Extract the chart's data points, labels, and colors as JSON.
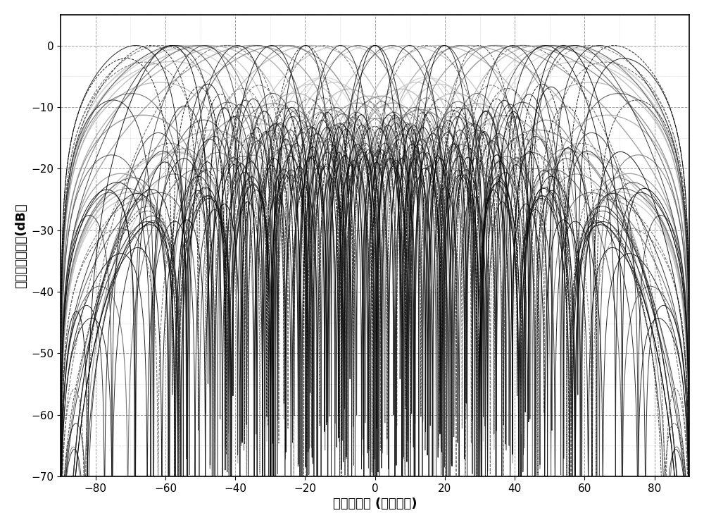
{
  "xlabel": "垂直面角度 (单位：度)",
  "ylabel": "归一化辐射功率(dB）",
  "xlim": [
    -90,
    90
  ],
  "ylim": [
    -70,
    5
  ],
  "yticks": [
    0,
    -10,
    -20,
    -30,
    -40,
    -50,
    -60,
    -70
  ],
  "xticks": [
    -80,
    -60,
    -40,
    -20,
    0,
    20,
    40,
    60,
    80
  ],
  "background_color": "#ffffff",
  "major_grid_color": "#888888",
  "minor_grid_color": "#aaaaaa",
  "font_size_label": 13,
  "font_size_tick": 11,
  "steering_angles_wide": [
    -80,
    -70,
    -60,
    -50,
    -40,
    -30,
    -20,
    -10,
    0,
    10,
    20,
    30,
    40,
    50,
    60,
    70,
    80
  ],
  "steering_angles_medium": [
    -75,
    -65,
    -55,
    -45,
    -35,
    -25,
    -15,
    -5,
    5,
    15,
    25,
    35,
    45,
    55,
    65,
    75
  ],
  "steering_angles_narrow": [
    -80,
    -70,
    -60,
    -50,
    -40,
    -30,
    -20,
    -10,
    0,
    10,
    20,
    30,
    40,
    50,
    60,
    70,
    80
  ],
  "colors_wide": [
    "#cccccc",
    "#bbbbbb",
    "#aaaaaa",
    "#999999",
    "#888888",
    "#777777",
    "#aaaaaa",
    "#bbbbbb",
    "#cccccc",
    "#bbbbbb",
    "#aaaaaa",
    "#999999",
    "#888888",
    "#777777",
    "#aaaaaa",
    "#bbbbbb",
    "#cccccc"
  ],
  "colors_medium": [
    "#555555",
    "#444444",
    "#666666",
    "#555555",
    "#444444",
    "#777777",
    "#666666",
    "#555555",
    "#444444",
    "#555555",
    "#666666",
    "#777777",
    "#555555",
    "#444444",
    "#555555",
    "#666666"
  ],
  "colors_narrow": [
    "#000000",
    "#111111",
    "#222222",
    "#333333",
    "#111111",
    "#000000",
    "#222222",
    "#111111",
    "#000000",
    "#111111",
    "#222222",
    "#333333",
    "#111111",
    "#000000",
    "#222222",
    "#111111",
    "#000000"
  ]
}
